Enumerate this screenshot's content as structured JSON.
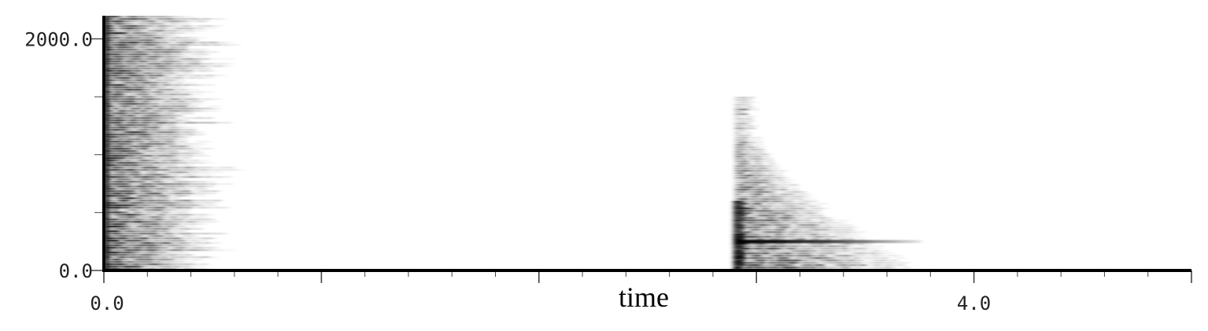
{
  "chart_data": {
    "type": "heatmap",
    "title": "",
    "xlabel": "time",
    "ylabel": "",
    "xlim": [
      0.0,
      5.0
    ],
    "ylim": [
      0.0,
      2200.0
    ],
    "x_tick_labels": [
      {
        "value": 0.0,
        "label": "0.0"
      },
      {
        "value": 4.0,
        "label": "4.0"
      }
    ],
    "y_tick_labels": [
      {
        "value": 0.0,
        "label": "0.0"
      },
      {
        "value": 2000.0,
        "label": "2000.0"
      }
    ],
    "x_minor_step": 0.2,
    "y_minor_step": 500.0,
    "colormap": "white-to-black",
    "events": [
      {
        "t_start": 0.0,
        "t_end": 0.7,
        "f_max": 2200.0,
        "peak_freq": null,
        "intensity": 0.85
      },
      {
        "t_start": 2.9,
        "t_end": 3.8,
        "f_max": 1500.0,
        "peak_freq": 250.0,
        "intensity": 0.8
      }
    ],
    "grid": false
  }
}
